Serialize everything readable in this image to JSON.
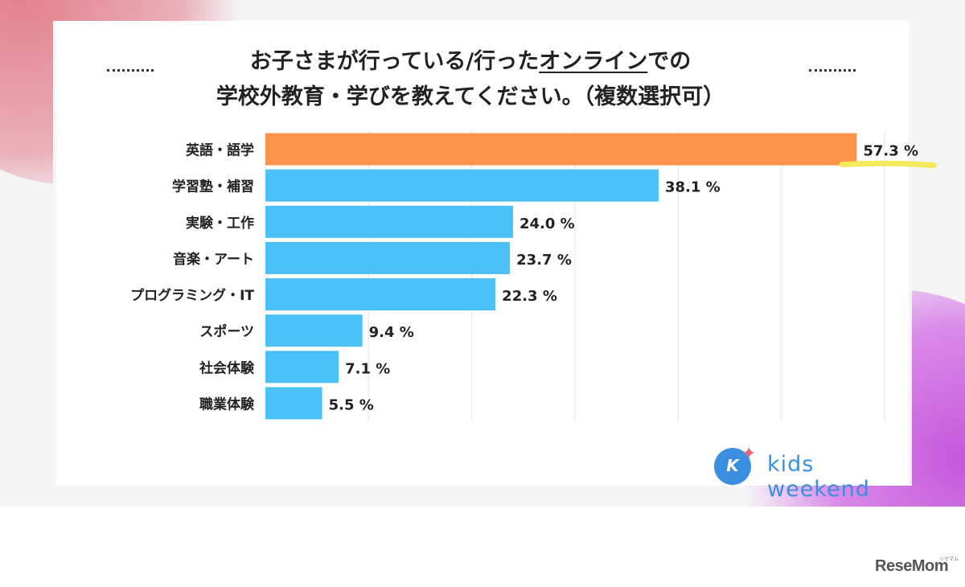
{
  "title": {
    "line1_pre": "お子さまが行っている/行った",
    "line1_underlined": "オンライン",
    "line1_post": "での",
    "line2": "学校外教育・学びを教えてください。（複数選択可）"
  },
  "chart_data": {
    "type": "bar",
    "orientation": "horizontal",
    "categories": [
      "英語・語学",
      "学習塾・補習",
      "実験・工作",
      "音楽・アート",
      "プログラミング・IT",
      "スポーツ",
      "社会体験",
      "職業体験"
    ],
    "values": [
      57.3,
      38.1,
      24.0,
      23.7,
      22.3,
      9.4,
      7.1,
      5.5
    ],
    "value_labels": [
      "57.3",
      "38.1",
      "24.0",
      "23.7",
      "22.3",
      "9.4",
      "7.1",
      "5.5"
    ],
    "unit": "%",
    "xlim": [
      0,
      60
    ],
    "grid": true,
    "highlight_index": 0,
    "colors": {
      "bar": "#4bc1f8",
      "highlight_bar": "#ff934b",
      "highlight_marker": "#f5ea5c",
      "grid": "#e4e4e4"
    }
  },
  "logo": {
    "text": "kids weekend",
    "mark": "K"
  },
  "watermark": {
    "text": "ReseMom",
    "sub": "リセマム"
  }
}
